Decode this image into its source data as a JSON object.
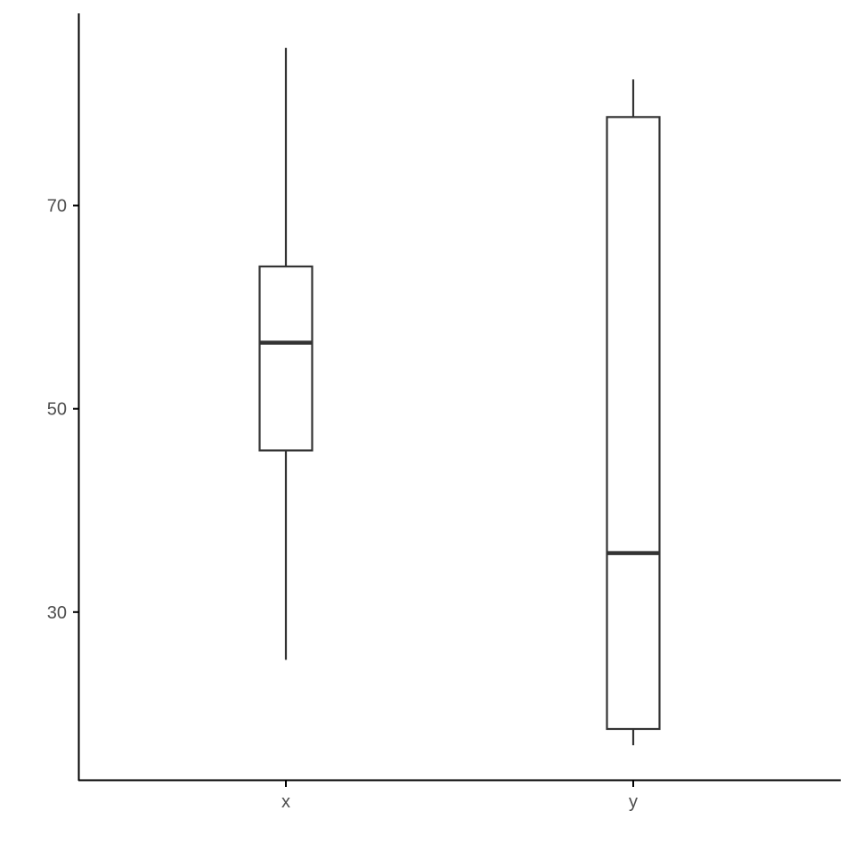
{
  "chart_data": {
    "type": "boxplot",
    "title": "",
    "xlabel": "",
    "ylabel": "",
    "categories": [
      "x",
      "y"
    ],
    "boxes": [
      {
        "category": "x",
        "whisker_low": 25.3,
        "q1": 45.9,
        "median": 56.5,
        "q3": 64.0,
        "whisker_high": 85.5
      },
      {
        "category": "y",
        "whisker_low": 16.9,
        "q1": 18.5,
        "median": 35.8,
        "q3": 78.7,
        "whisker_high": 82.4
      }
    ],
    "yticks": [
      30,
      50,
      70
    ],
    "ytick_labels": [
      "30",
      "50",
      "70"
    ],
    "ylim": [
      13.5,
      88.9
    ],
    "grid": false,
    "colors": {
      "line": "#333333",
      "fill": "#ffffff",
      "axis": "#000000"
    }
  }
}
